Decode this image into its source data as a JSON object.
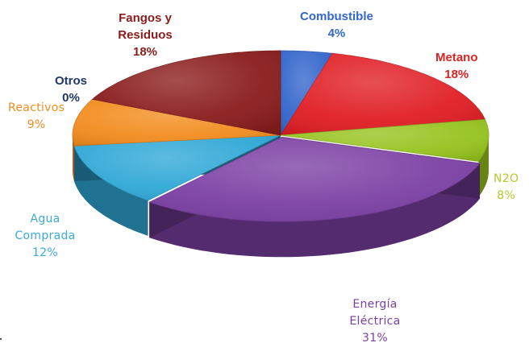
{
  "chart_data": {
    "type": "pie",
    "title": "",
    "slices": [
      {
        "label": "Combustible",
        "value": 4,
        "value_label": "4%",
        "color": "#3366cc",
        "label_color": "#3366cc"
      },
      {
        "label": "Metano",
        "value": 18,
        "value_label": "18%",
        "color": "#e01e24",
        "label_color": "#dd2222"
      },
      {
        "label": "N2O",
        "value": 8,
        "value_label": "8%",
        "color": "#96c31e",
        "label_color": "#b5c92a"
      },
      {
        "label": "Energía Eléctrica",
        "value": 31,
        "value_label": "31%",
        "color": "#7b3fa3",
        "label_color": "#7b3fa3"
      },
      {
        "label": "Agua Comprada",
        "value": 12,
        "value_label": "12%",
        "color": "#2fa8d6",
        "label_color": "#3aa9d6"
      },
      {
        "label": "Reactivos",
        "value": 9,
        "value_label": "9%",
        "color": "#f28c1e",
        "label_color": "#f28c1e"
      },
      {
        "label": "Otros",
        "value": 0,
        "value_label": "0%",
        "color": "#1f3864",
        "label_color": "#1f3864"
      },
      {
        "label": "Fangos y Residuos",
        "value": 18,
        "value_label": "18%",
        "color": "#8a1c1c",
        "label_color": "#8a1c1c"
      }
    ],
    "legend": "none",
    "style": "3d-exploded"
  }
}
